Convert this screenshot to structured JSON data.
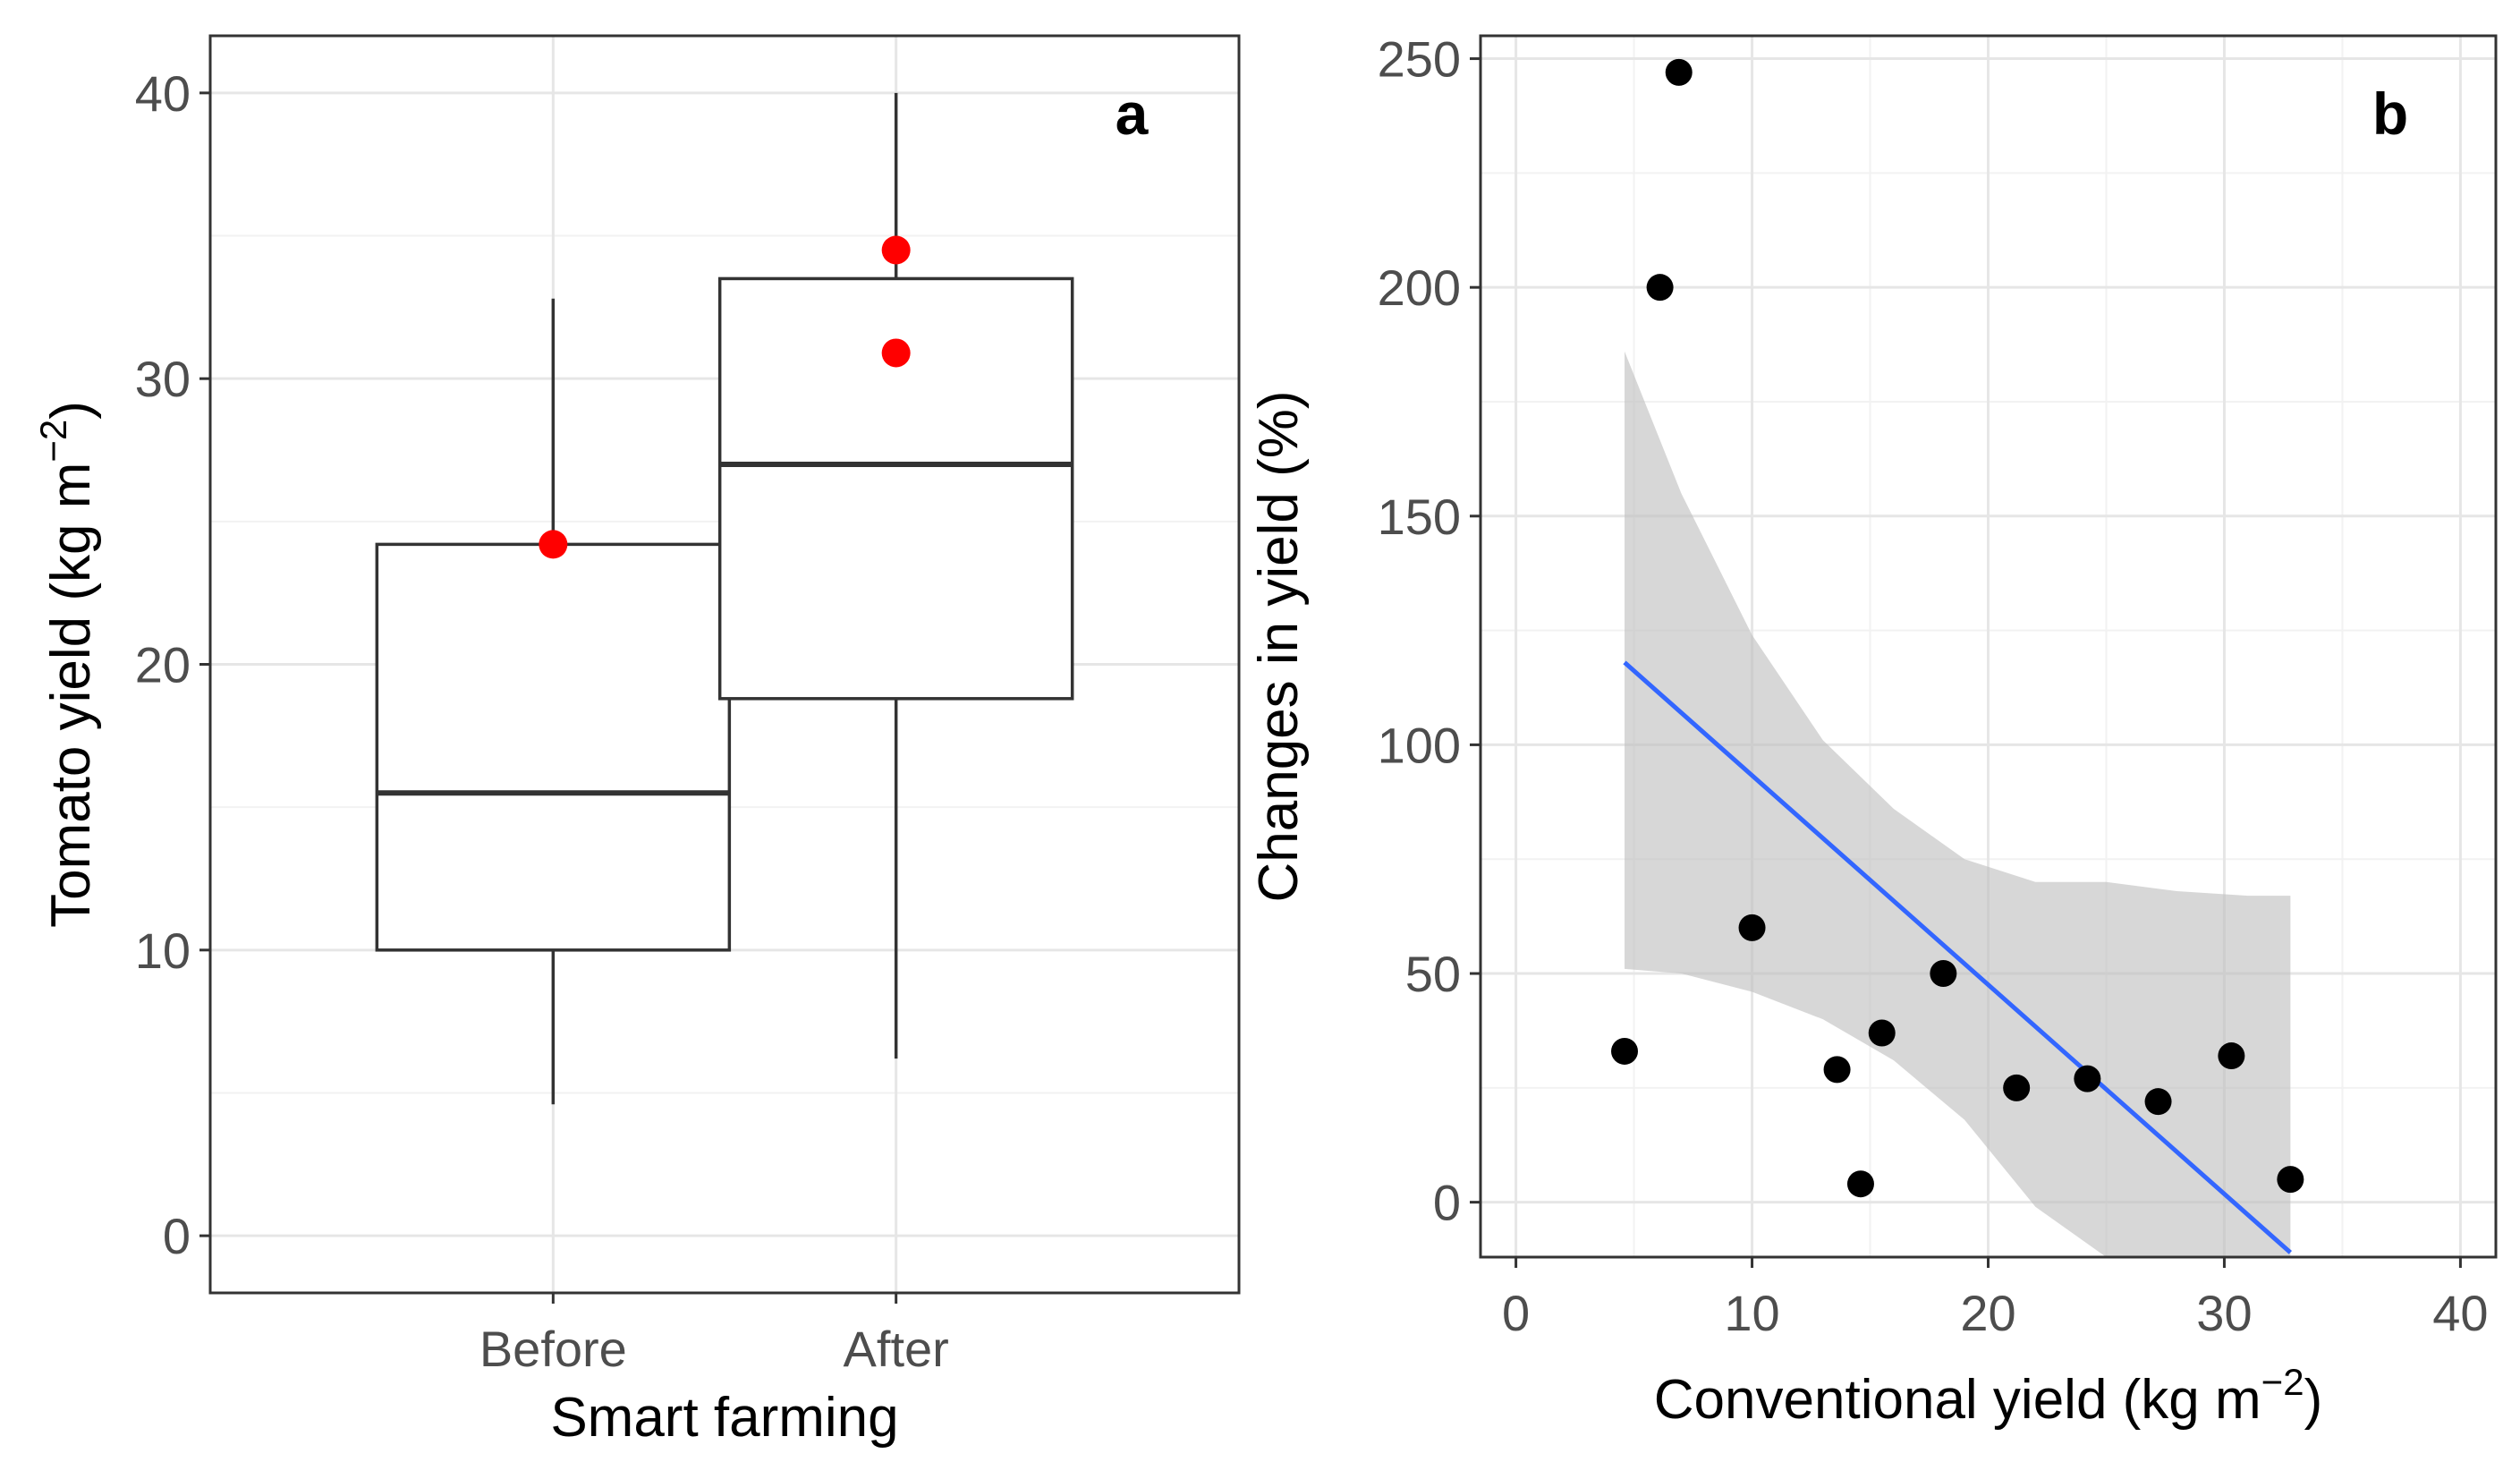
{
  "chart_data": [
    {
      "type": "box",
      "panel_label": "a",
      "xlabel": "Smart farming",
      "ylabel_main": "Tomato yield (kg m",
      "ylabel_sup": "−2",
      "ylabel_close": ")",
      "ylim": [
        -2,
        42
      ],
      "yticks": [
        0,
        10,
        20,
        30,
        40
      ],
      "ytick_labels": [
        "0",
        "10",
        "20",
        "30",
        "40"
      ],
      "grid": true,
      "categories": [
        "Before",
        "After"
      ],
      "boxes": [
        {
          "category": "Before",
          "whisker_low": 4.6,
          "q1": 10.0,
          "median": 15.5,
          "q3": 24.2,
          "whisker_high": 32.8
        },
        {
          "category": "After",
          "whisker_low": 6.2,
          "q1": 18.8,
          "median": 27.0,
          "q3": 33.5,
          "whisker_high": 40.0
        }
      ],
      "highlight_points": [
        {
          "category": "Before",
          "y": 24.2,
          "color": "#ff0000"
        },
        {
          "category": "After",
          "y": 34.5,
          "color": "#ff0000"
        },
        {
          "category": "After",
          "y": 30.9,
          "color": "#ff0000"
        }
      ]
    },
    {
      "type": "scatter",
      "panel_label": "b",
      "xlabel_main": "Conventional yield  (kg m",
      "xlabel_sup": "−2",
      "xlabel_close": ")",
      "ylabel": "Changes in yield (%)",
      "xlim": [
        -1.5,
        41.5
      ],
      "ylim": [
        -12,
        255
      ],
      "xticks": [
        0,
        10,
        20,
        30,
        40
      ],
      "xtick_labels": [
        "0",
        "10",
        "20",
        "30",
        "40"
      ],
      "yticks": [
        0,
        50,
        100,
        150,
        200,
        250
      ],
      "ytick_labels": [
        "0",
        "50",
        "100",
        "150",
        "200",
        "250"
      ],
      "grid": true,
      "points": [
        {
          "x": 4.6,
          "y": 33
        },
        {
          "x": 6.1,
          "y": 200
        },
        {
          "x": 6.9,
          "y": 247
        },
        {
          "x": 10.0,
          "y": 60
        },
        {
          "x": 13.6,
          "y": 29
        },
        {
          "x": 14.6,
          "y": 4
        },
        {
          "x": 15.5,
          "y": 37
        },
        {
          "x": 18.1,
          "y": 50
        },
        {
          "x": 21.2,
          "y": 25
        },
        {
          "x": 24.2,
          "y": 27
        },
        {
          "x": 27.2,
          "y": 22
        },
        {
          "x": 30.3,
          "y": 32
        },
        {
          "x": 32.8,
          "y": 5
        }
      ],
      "fit_line": {
        "color": "#3366ff",
        "x": [
          4.6,
          32.8
        ],
        "y": [
          118,
          -11
        ]
      },
      "confidence_band": {
        "color": "#bfbfbf",
        "x": [
          4.6,
          7,
          10,
          13,
          16,
          19,
          22,
          25,
          28,
          31,
          32.8
        ],
        "upper": [
          186,
          155,
          124,
          101,
          86,
          75,
          70,
          70,
          68,
          67,
          67
        ],
        "lower": [
          51,
          50,
          46,
          40,
          31,
          18,
          -1,
          -12,
          -12,
          -12,
          -12
        ]
      },
      "point_color": "#000000"
    }
  ]
}
